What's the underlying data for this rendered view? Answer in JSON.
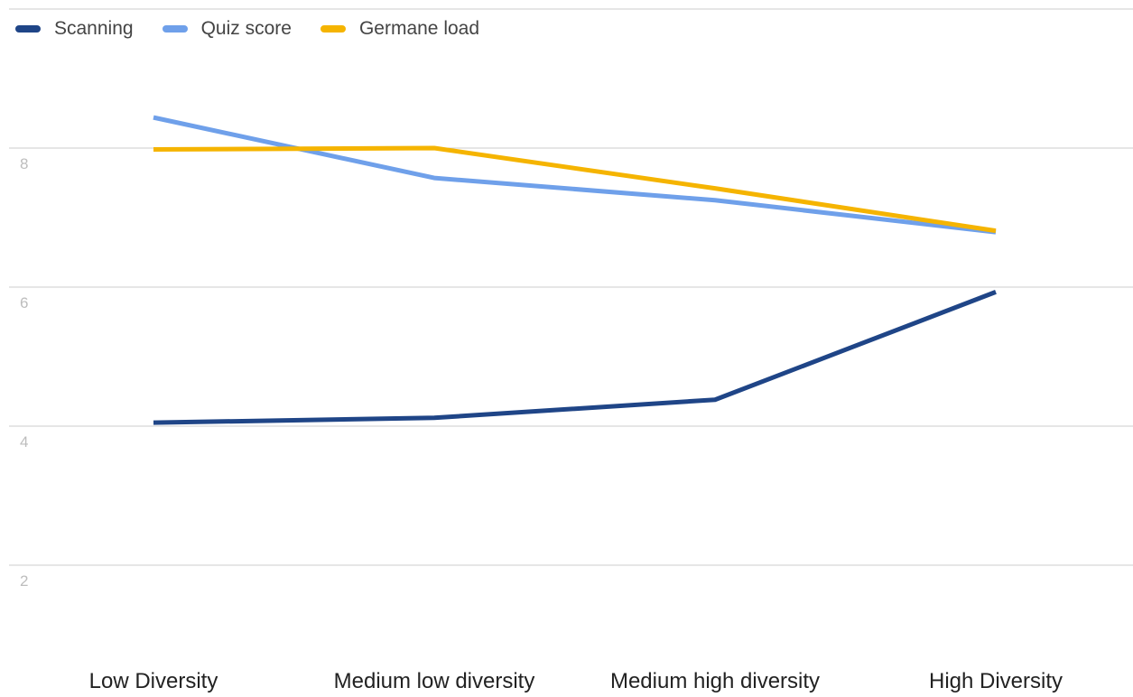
{
  "chart_data": {
    "type": "line",
    "title": "",
    "xlabel": "",
    "ylabel": "",
    "categories": [
      "Low Diversity",
      "Medium low diversity",
      "Medium high diversity",
      "High Diversity"
    ],
    "ylim": [
      1,
      10
    ],
    "yticks": [
      2,
      4,
      6,
      8
    ],
    "grid": true,
    "legend_position": "top-left",
    "series": [
      {
        "name": "Scanning",
        "color": "#1f4587",
        "values": [
          4.05,
          4.12,
          4.38,
          5.93
        ]
      },
      {
        "name": "Quiz score",
        "color": "#6fa0ea",
        "values": [
          8.44,
          7.57,
          7.25,
          6.79
        ]
      },
      {
        "name": "Germane load",
        "color": "#f5b400",
        "values": [
          7.98,
          8.0,
          7.42,
          6.81
        ]
      }
    ]
  }
}
